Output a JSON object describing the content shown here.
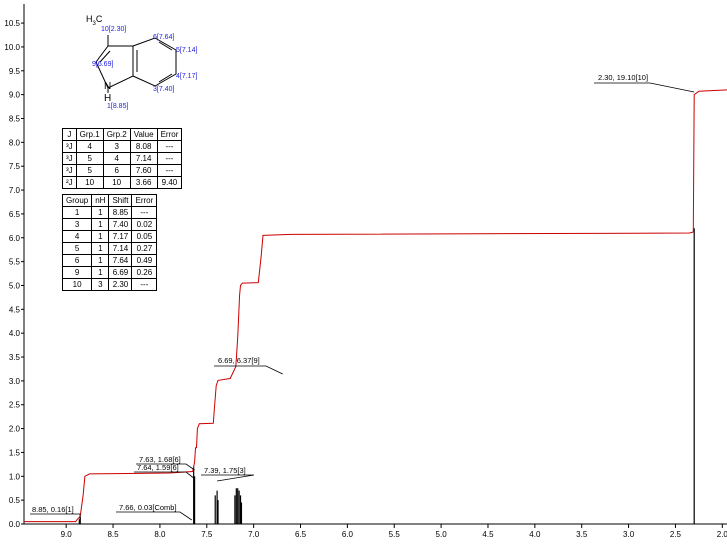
{
  "chart_data": {
    "type": "line",
    "title": "",
    "xlabel": "",
    "ylabel": "",
    "xlim": [
      9.45,
      1.95
    ],
    "ylim": [
      0,
      10.9
    ],
    "x_ticks": [
      "9.0",
      "8.5",
      "8.0",
      "7.5",
      "7.0",
      "6.5",
      "6.0",
      "5.5",
      "5.0",
      "4.5",
      "4.0",
      "3.5",
      "3.0",
      "2.5",
      "2.0"
    ],
    "y_ticks": [
      "0.0",
      "0.5",
      "1.0",
      "1.5",
      "2.0",
      "2.5",
      "3.0",
      "3.5",
      "4.0",
      "4.5",
      "5.0",
      "5.5",
      "6.0",
      "6.5",
      "7.0",
      "7.5",
      "8.0",
      "8.5",
      "9.0",
      "9.5",
      "10.0",
      "10.5"
    ],
    "series": [
      {
        "kind": "integral",
        "color": "#cc0000",
        "points": [
          [
            9.45,
            0.05
          ],
          [
            8.9,
            0.05
          ],
          [
            8.88,
            0.1
          ],
          [
            8.85,
            0.16
          ],
          [
            8.82,
            0.6
          ],
          [
            8.8,
            1.0
          ],
          [
            8.75,
            1.05
          ],
          [
            7.9,
            1.07
          ],
          [
            7.65,
            1.1
          ],
          [
            7.63,
            1.3
          ],
          [
            7.62,
            1.6
          ],
          [
            7.61,
            1.6
          ],
          [
            7.6,
            2.0
          ],
          [
            7.58,
            2.1
          ],
          [
            7.43,
            2.11
          ],
          [
            7.42,
            2.4
          ],
          [
            7.4,
            2.9
          ],
          [
            7.38,
            3.01
          ],
          [
            7.25,
            3.05
          ],
          [
            7.19,
            3.3
          ],
          [
            7.17,
            3.9
          ],
          [
            7.15,
            4.8
          ],
          [
            7.14,
            5.0
          ],
          [
            7.12,
            5.05
          ],
          [
            6.95,
            5.06
          ],
          [
            6.92,
            5.6
          ],
          [
            6.9,
            6.05
          ],
          [
            6.6,
            6.07
          ],
          [
            2.35,
            6.1
          ],
          [
            2.31,
            6.12
          ],
          [
            2.3,
            9.0
          ],
          [
            2.25,
            9.07
          ],
          [
            1.95,
            9.1
          ]
        ]
      },
      {
        "kind": "spectrum",
        "color": "#000000",
        "peaks": [
          [
            8.85,
            0.15
          ],
          [
            8.86,
            0.1
          ],
          [
            7.64,
            1.2
          ],
          [
            7.63,
            1.0
          ],
          [
            7.41,
            0.6
          ],
          [
            7.39,
            0.7
          ],
          [
            7.38,
            0.5
          ],
          [
            7.2,
            0.6
          ],
          [
            7.185,
            0.75
          ],
          [
            7.17,
            0.75
          ],
          [
            7.155,
            0.7
          ],
          [
            7.14,
            0.6
          ],
          [
            7.13,
            0.45
          ],
          [
            2.3,
            6.2
          ]
        ]
      }
    ],
    "annotations": [
      {
        "text": "8.85, 0.16[1]",
        "x": 8.85,
        "y": 0.16
      },
      {
        "text": "7.66, 0.03[Comb]",
        "x": 7.66,
        "y": 0.03
      },
      {
        "text": "7.64, 1.59[6]",
        "x": 7.64,
        "y": 1.59
      },
      {
        "text": "7.63, 1.68[6]",
        "x": 7.63,
        "y": 1.68
      },
      {
        "text": "7.39, 1.75[3]",
        "x": 7.39,
        "y": 1.75
      },
      {
        "text": "6.69, 6.37[9]",
        "x": 6.69,
        "y": 6.37
      },
      {
        "text": "2.30, 19.10[10]",
        "x": 2.3,
        "y": 19.1
      }
    ]
  },
  "structure": {
    "h3c": "H",
    "h3c_sub": "3",
    "h3c_c": "C",
    "label_10": "10[2.30]",
    "label_9": "9[6.69]",
    "label_6": "6[7.64]",
    "label_5": "5[7.14]",
    "label_4": "4[7.17]",
    "label_3": "3[7.40]",
    "label_1": "1[8.85]",
    "n": "N",
    "h": "H"
  },
  "j_table": {
    "headers": [
      "J",
      "Grp.1",
      "Grp.2",
      "Value",
      "Error"
    ],
    "rows": [
      [
        "³J",
        "4",
        "3",
        "8.08",
        "---"
      ],
      [
        "³J",
        "5",
        "4",
        "7.14",
        "---"
      ],
      [
        "³J",
        "5",
        "6",
        "7.60",
        "---"
      ],
      [
        "²J",
        "10",
        "10",
        "3.66",
        "9.40"
      ]
    ]
  },
  "shift_table": {
    "headers": [
      "Group",
      "nH",
      "Shift",
      "Error"
    ],
    "rows": [
      [
        "1",
        "1",
        "8.85",
        "---"
      ],
      [
        "3",
        "1",
        "7.40",
        "0.02"
      ],
      [
        "4",
        "1",
        "7.17",
        "0.05"
      ],
      [
        "5",
        "1",
        "7.14",
        "0.27"
      ],
      [
        "6",
        "1",
        "7.64",
        "0.49"
      ],
      [
        "9",
        "1",
        "6.69",
        "0.26"
      ],
      [
        "10",
        "3",
        "2.30",
        "---"
      ]
    ]
  }
}
